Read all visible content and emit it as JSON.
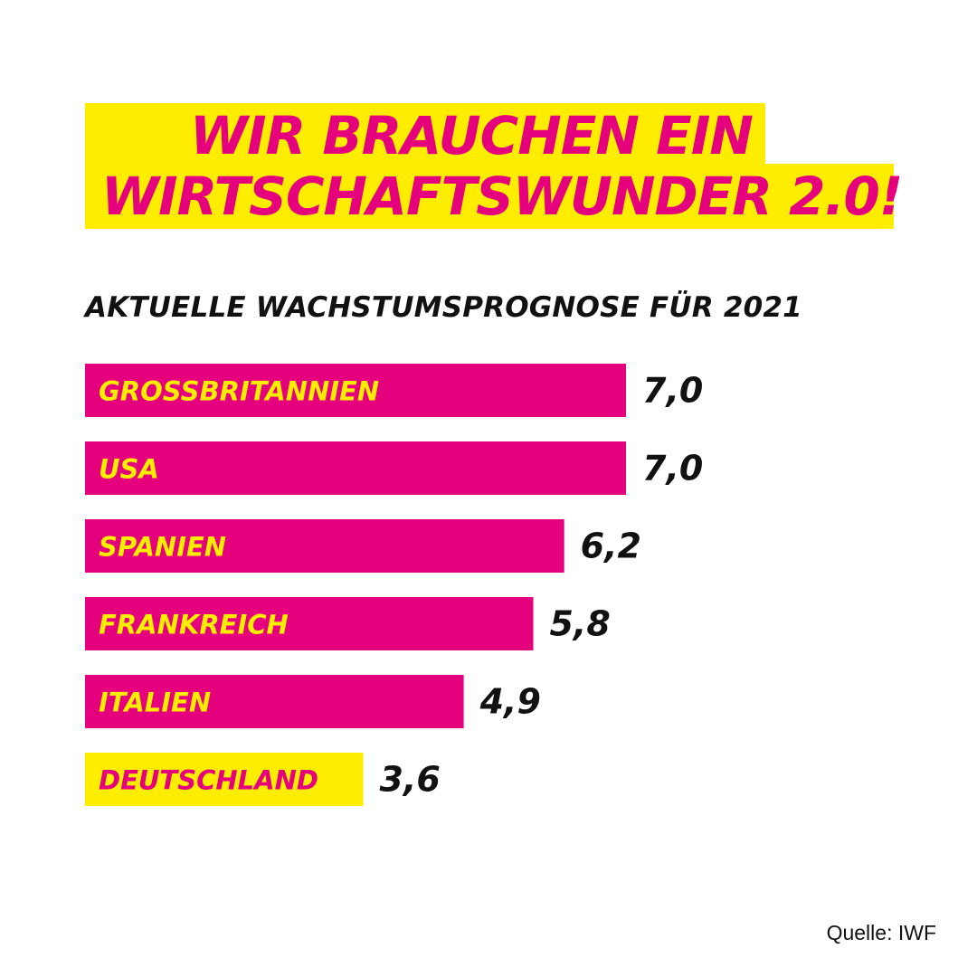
{
  "headline": {
    "line1": "WIR BRAUCHEN EIN",
    "line2": "WIRTSCHAFTSWUNDER 2.0!"
  },
  "colors": {
    "brand_magenta": "#e5007d",
    "brand_yellow": "#ffed00",
    "text_dark": "#111111",
    "background": "#ffffff"
  },
  "chart_data": {
    "type": "bar",
    "orientation": "horizontal",
    "title": "AKTUELLE WACHSTUMSPROGNOSE FÜR 2021",
    "categories": [
      "GROSSBRITANNIEN",
      "USA",
      "SPANIEN",
      "FRANKREICH",
      "ITALIEN",
      "DEUTSCHLAND"
    ],
    "values": [
      7.0,
      7.0,
      6.2,
      5.8,
      4.9,
      3.6
    ],
    "value_labels": [
      "7,0",
      "7,0",
      "6,2",
      "5,8",
      "4,9",
      "3,6"
    ],
    "highlight": "DEUTSCHLAND",
    "xlim": [
      0,
      7.0
    ],
    "grid": false,
    "legend": "none"
  },
  "source": "Quelle: IWF"
}
